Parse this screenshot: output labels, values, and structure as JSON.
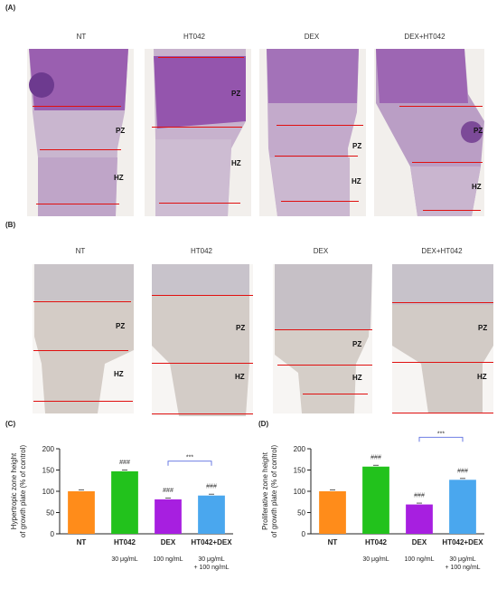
{
  "panels": {
    "A": {
      "label": "(A)",
      "columns": [
        "NT",
        "HT042",
        "DEX",
        "DEX+HT042"
      ],
      "zone_labels": {
        "pz": "PZ",
        "hz": "HZ"
      }
    },
    "B": {
      "label": "(B)",
      "columns": [
        "NT",
        "HT042",
        "DEX",
        "DEX+HT042"
      ],
      "zone_labels": {
        "pz": "PZ",
        "hz": "HZ"
      }
    },
    "C": {
      "label": "(C)"
    },
    "D": {
      "label": "(D)"
    }
  },
  "colors": {
    "he_stain": "#8a4f9e",
    "ihc_stain": "#c8c2bc",
    "red_line": "#e01010",
    "bar_nt": "#ff8c1a",
    "bar_ht042": "#22c21c",
    "bar_dex": "#a71fe0",
    "bar_combo": "#4aa7ee",
    "sig_bracket": "#5a6de0"
  },
  "chart_data": [
    {
      "type": "bar",
      "ylabel": "Hypertropic zone height\nof growth plate (% of control)",
      "ylabel_lines": [
        "Hypertropic zone height",
        "of growth plate (% of control)"
      ],
      "categories": [
        "NT",
        "HT042",
        "DEX",
        "HT042+DEX"
      ],
      "doses": [
        "",
        "30 μg/mL",
        "100 ng/mL",
        "30 μg/mL\n+ 100 ng/mL"
      ],
      "dose_lines": [
        [
          ""
        ],
        [
          "30 μg/mL"
        ],
        [
          "100 ng/mL"
        ],
        [
          "30 μg/mL",
          "+ 100 ng/mL"
        ]
      ],
      "values": [
        100,
        147,
        81,
        90
      ],
      "annotations": [
        "",
        "###",
        "###",
        "###"
      ],
      "bracket": {
        "from": 2,
        "to": 3,
        "label": "***"
      },
      "ylim": [
        0,
        200
      ],
      "yticks": [
        0,
        50,
        100,
        150,
        200
      ],
      "grid": false
    },
    {
      "type": "bar",
      "ylabel": "Proliferative zone height\nof growth plate (% of control)",
      "ylabel_lines": [
        "Proliferative zone height",
        "of growth plate (% of control)"
      ],
      "categories": [
        "NT",
        "HT042",
        "DEX",
        "HT042+DEX"
      ],
      "doses": [
        "",
        "30 μg/mL",
        "100 ng/mL",
        "30 μg/mL\n+ 100 ng/mL"
      ],
      "dose_lines": [
        [
          ""
        ],
        [
          "30 μg/mL"
        ],
        [
          "100 ng/mL"
        ],
        [
          "30 μg/mL",
          "+ 100 ng/mL"
        ]
      ],
      "values": [
        100,
        158,
        69,
        127
      ],
      "annotations": [
        "",
        "###",
        "###",
        "###"
      ],
      "bracket": {
        "from": 2,
        "to": 3,
        "label": "***"
      },
      "ylim": [
        0,
        200
      ],
      "yticks": [
        0,
        50,
        100,
        150,
        200
      ],
      "grid": false
    }
  ]
}
